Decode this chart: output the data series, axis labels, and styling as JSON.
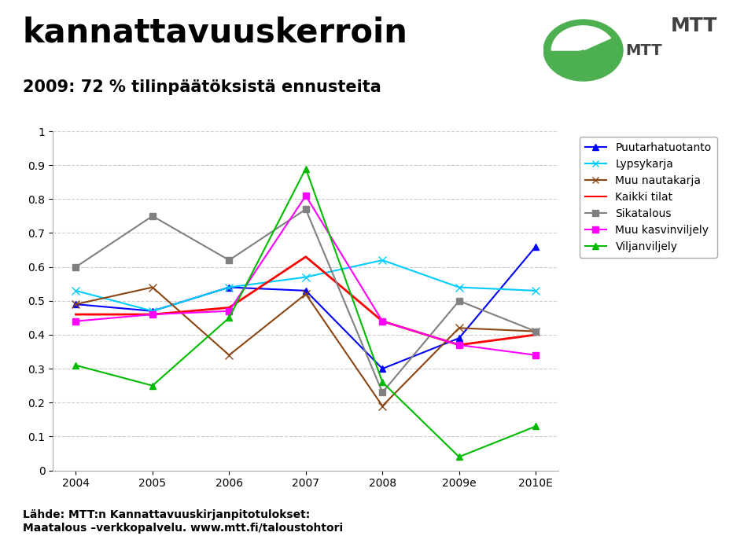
{
  "title": "kannattavuuskerroin",
  "subtitle": "2009: 72 % tilinpäätöksistä ennusteita",
  "xlabel": "",
  "ylabel": "",
  "x_labels": [
    "2004",
    "2005",
    "2006",
    "2007",
    "2008",
    "2009e",
    "2010E"
  ],
  "ylim": [
    0,
    1.0
  ],
  "yticks": [
    0,
    0.1,
    0.2,
    0.3,
    0.4,
    0.5,
    0.6,
    0.7,
    0.8,
    0.9,
    1
  ],
  "series": [
    {
      "label": "Puutarhatuotanto",
      "color": "#0000FF",
      "marker": "^",
      "markersize": 6,
      "linewidth": 1.5,
      "values": [
        0.49,
        0.47,
        0.54,
        0.53,
        0.3,
        0.39,
        0.66
      ]
    },
    {
      "label": "Lypsykarja",
      "color": "#00CCFF",
      "marker": "x",
      "markersize": 7,
      "linewidth": 1.5,
      "values": [
        0.53,
        0.47,
        0.54,
        0.57,
        0.62,
        0.54,
        0.53
      ]
    },
    {
      "label": "Muu nautakarja",
      "color": "#8B4513",
      "marker": "x",
      "markersize": 7,
      "linewidth": 1.5,
      "values": [
        0.49,
        0.54,
        0.34,
        0.52,
        0.19,
        0.42,
        0.41
      ]
    },
    {
      "label": "Kaikki tilat",
      "color": "#FF0000",
      "marker": null,
      "markersize": 0,
      "linewidth": 2.0,
      "values": [
        0.46,
        0.46,
        0.48,
        0.63,
        0.44,
        0.37,
        0.4
      ]
    },
    {
      "label": "Sikatalous",
      "color": "#808080",
      "marker": "s",
      "markersize": 6,
      "linewidth": 1.5,
      "values": [
        0.6,
        0.75,
        0.62,
        0.77,
        0.23,
        0.5,
        0.41
      ]
    },
    {
      "label": "Muu kasvinviljely",
      "color": "#FF00FF",
      "marker": "s",
      "markersize": 6,
      "linewidth": 1.5,
      "values": [
        0.44,
        0.46,
        0.47,
        0.81,
        0.44,
        0.37,
        0.34
      ]
    },
    {
      "label": "Viljanviljely",
      "color": "#00BB00",
      "marker": "^",
      "markersize": 6,
      "linewidth": 1.5,
      "values": [
        0.31,
        0.25,
        0.45,
        0.89,
        0.26,
        0.04,
        0.13
      ]
    }
  ],
  "background_color": "#FFFFFF",
  "plot_bg_color": "#FFFFFF",
  "grid_color": "#CCCCCC",
  "title_fontsize": 30,
  "subtitle_fontsize": 15,
  "tick_fontsize": 10,
  "legend_fontsize": 10,
  "footer": "Lähde: MTT:n Kannattavuuskirjanpitotulokset:\nMaatalous –verkkopalvelu. www.mtt.fi/taloustohtori"
}
